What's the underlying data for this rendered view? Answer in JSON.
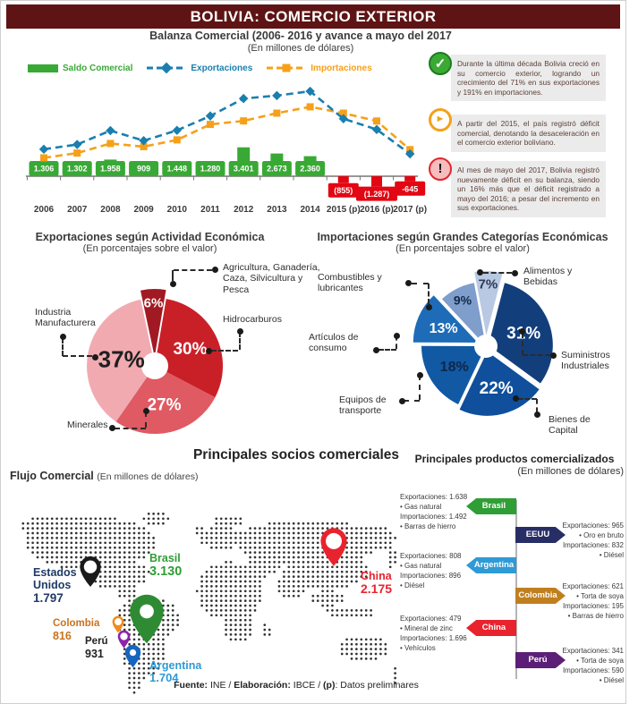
{
  "header": {
    "title": "BOLIVIA: COMERCIO EXTERIOR"
  },
  "chart_data": [
    {
      "type": "line",
      "title": "Balanza Comercial  (2006- 2016 y avance a mayo del 2017",
      "subtitle": "(En millones de dólares)",
      "categories": [
        "2006",
        "2007",
        "2008",
        "2009",
        "2010",
        "2011",
        "2012",
        "2013",
        "2014",
        "2015 (p)",
        "2016 (p)",
        "2017 (p)"
      ],
      "series": [
        {
          "name": "Saldo Comercial",
          "kind": "bar",
          "color": "#39a935",
          "negative_color": "#e30613",
          "values": [
            1306,
            1302,
            1958,
            909,
            1448,
            1280,
            3401,
            2673,
            2360,
            -855,
            -1287,
            -645
          ],
          "labels": [
            "1.306",
            "1.302",
            "1.958",
            "909",
            "1.448",
            "1.280",
            "3.401",
            "2.673",
            "2.360",
            "(855)",
            "(1.287)",
            "-645"
          ]
        },
        {
          "name": "Exportaciones",
          "kind": "line",
          "color": "#1a7fae",
          "values": [
            4100,
            4820,
            6930,
            5400,
            6970,
            9150,
            11800,
            12250,
            12900,
            8730,
            7100,
            3390
          ]
        },
        {
          "name": "Importaciones",
          "kind": "line",
          "color": "#f6a01a",
          "values": [
            2790,
            3520,
            4970,
            4490,
            5520,
            7870,
            8400,
            9580,
            10540,
            9580,
            8390,
            4040
          ]
        }
      ],
      "ylim": [
        -1500,
        13500
      ],
      "grid": false,
      "legend_position": "top-left"
    },
    {
      "type": "pie",
      "title": "Exportaciones según Actividad Económica",
      "subtitle": "(En porcentajes sobre el valor)",
      "slices": [
        {
          "label": "Agricultura, Ganadería, Caza, Silvicultura y Pesca",
          "value": 6,
          "color": "#a11a23",
          "explode": 10,
          "pct_color": "#ffffff"
        },
        {
          "label": "Hidrocarburos",
          "value": 30,
          "color": "#c92028",
          "explode": 0,
          "pct_color": "#ffffff"
        },
        {
          "label": "Minerales",
          "value": 27,
          "color": "#df5a62",
          "explode": 0,
          "pct_color": "#ffffff"
        },
        {
          "label": "Industria Manufacturera",
          "value": 37,
          "color": "#f2aab1",
          "explode": 0,
          "pct_color": "#1f1f1f"
        }
      ]
    },
    {
      "type": "pie",
      "title": "Importaciones según Grandes Categorías Económicas",
      "subtitle": "(En porcentajes sobre el valor)",
      "slices": [
        {
          "label": "Alimentos y Bebidas",
          "value": 7,
          "color": "#b9c9e3",
          "explode": 12,
          "pct_color": "#2a3a55"
        },
        {
          "label": "Suministros Industriales",
          "value": 31,
          "color": "#123f7c",
          "explode": 3,
          "pct_color": "#ffffff"
        },
        {
          "label": "Bienes de Capital",
          "value": 22,
          "color": "#0f4f9b",
          "explode": 6,
          "pct_color": "#ffffff"
        },
        {
          "label": "Equipos de transporte",
          "value": 18,
          "color": "#1259a4",
          "explode": 0,
          "pct_color": "#0f2747"
        },
        {
          "label": "Artículos de consumo",
          "value": 13,
          "color": "#1e6cb8",
          "explode": 10,
          "pct_color": "#ffffff"
        },
        {
          "label": "Combustibles y lubricantes",
          "value": 9,
          "color": "#7f9ecb",
          "explode": 0,
          "pct_color": "#13294a"
        }
      ]
    }
  ],
  "callouts": [
    {
      "icon": "check-icon",
      "glyph": "✓",
      "icon_color": "#3aaa35",
      "text": "Durante la última década Bolivia creció en su comercio exterior, logrando un crecimiento del 71% en sus exportaciones y 191% en importaciones."
    },
    {
      "icon": "arrow-icon",
      "glyph": "►",
      "icon_color": "#f5a01a",
      "text": "A partir del 2015, el país registró déficit comercial, denotando la desaceleración en el comercio exterior boliviano."
    },
    {
      "icon": "alert-icon",
      "glyph": "!",
      "icon_color": "#e3242c",
      "text": "Al mes de mayo del 2017, Bolivia registró nuevamente déficit en su balanza, siendo un 16% más que el déficit registrado a mayo del 2016; a pesar del incremento en sus exportaciones."
    }
  ],
  "socios": {
    "title": "Principales socios comerciales",
    "flujo_title": "Flujo Comercial",
    "flujo_subtitle": "(En millones de dólares)",
    "countries": [
      {
        "name": "Estados Unidos",
        "value": "1.797",
        "color": "#1f3a68",
        "pin": "#1a1a1a"
      },
      {
        "name": "Brasil",
        "value": "3.130",
        "color": "#2f9e35",
        "pin": "#2e8b33"
      },
      {
        "name": "Colombia",
        "value": "816",
        "color": "#c9731f",
        "pin": "#f08c1e"
      },
      {
        "name": "Perú",
        "value": "931",
        "color": "#222222",
        "pin": "#8e24aa"
      },
      {
        "name": "Argentina",
        "value": "1.704",
        "color": "#2e9ad6",
        "pin": "#1565c0"
      },
      {
        "name": "China",
        "value": "2.175",
        "color": "#e8232e",
        "pin": "#e8232e"
      }
    ]
  },
  "productos": {
    "title": "Principales productos comercializados",
    "subtitle": "(En millones de dólares)",
    "items": [
      {
        "country": "Brasil",
        "color": "#2f9e35",
        "side": "left",
        "lines": [
          "Exportaciones: 1.638",
          "• Gas natural",
          "Importaciones: 1.492",
          "• Barras de hierro"
        ]
      },
      {
        "country": "EEUU",
        "color": "#272e66",
        "side": "right",
        "lines": [
          "Exportaciones: 965",
          "• Oro en bruto",
          "Importaciones: 832",
          "• Diésel"
        ]
      },
      {
        "country": "Argentina",
        "color": "#2e9ad6",
        "side": "left",
        "lines": [
          "Exportaciones: 808",
          "• Gas natural",
          "Importaciones: 896",
          "• Diésel"
        ]
      },
      {
        "country": "Colombia",
        "color": "#c07f1f",
        "side": "right",
        "lines": [
          "Exportaciones: 621",
          "• Torta de soya",
          "Importaciones: 195",
          "• Barras de hierro"
        ]
      },
      {
        "country": "China",
        "color": "#e8232e",
        "side": "left",
        "lines": [
          "Exportaciones: 479",
          "• Mineral de zinc",
          "Importaciones: 1.696",
          "• Vehículos"
        ]
      },
      {
        "country": "Perú",
        "color": "#5c1f77",
        "side": "right",
        "lines": [
          "Exportaciones: 341",
          "• Torta de soya",
          "Importaciones: 590",
          "• Diésel"
        ]
      }
    ]
  },
  "footer": {
    "parts": [
      "Fuente:",
      " INE / ",
      "Elaboración:",
      " IBCE / ",
      "(p)",
      ": Datos preliminares"
    ]
  }
}
